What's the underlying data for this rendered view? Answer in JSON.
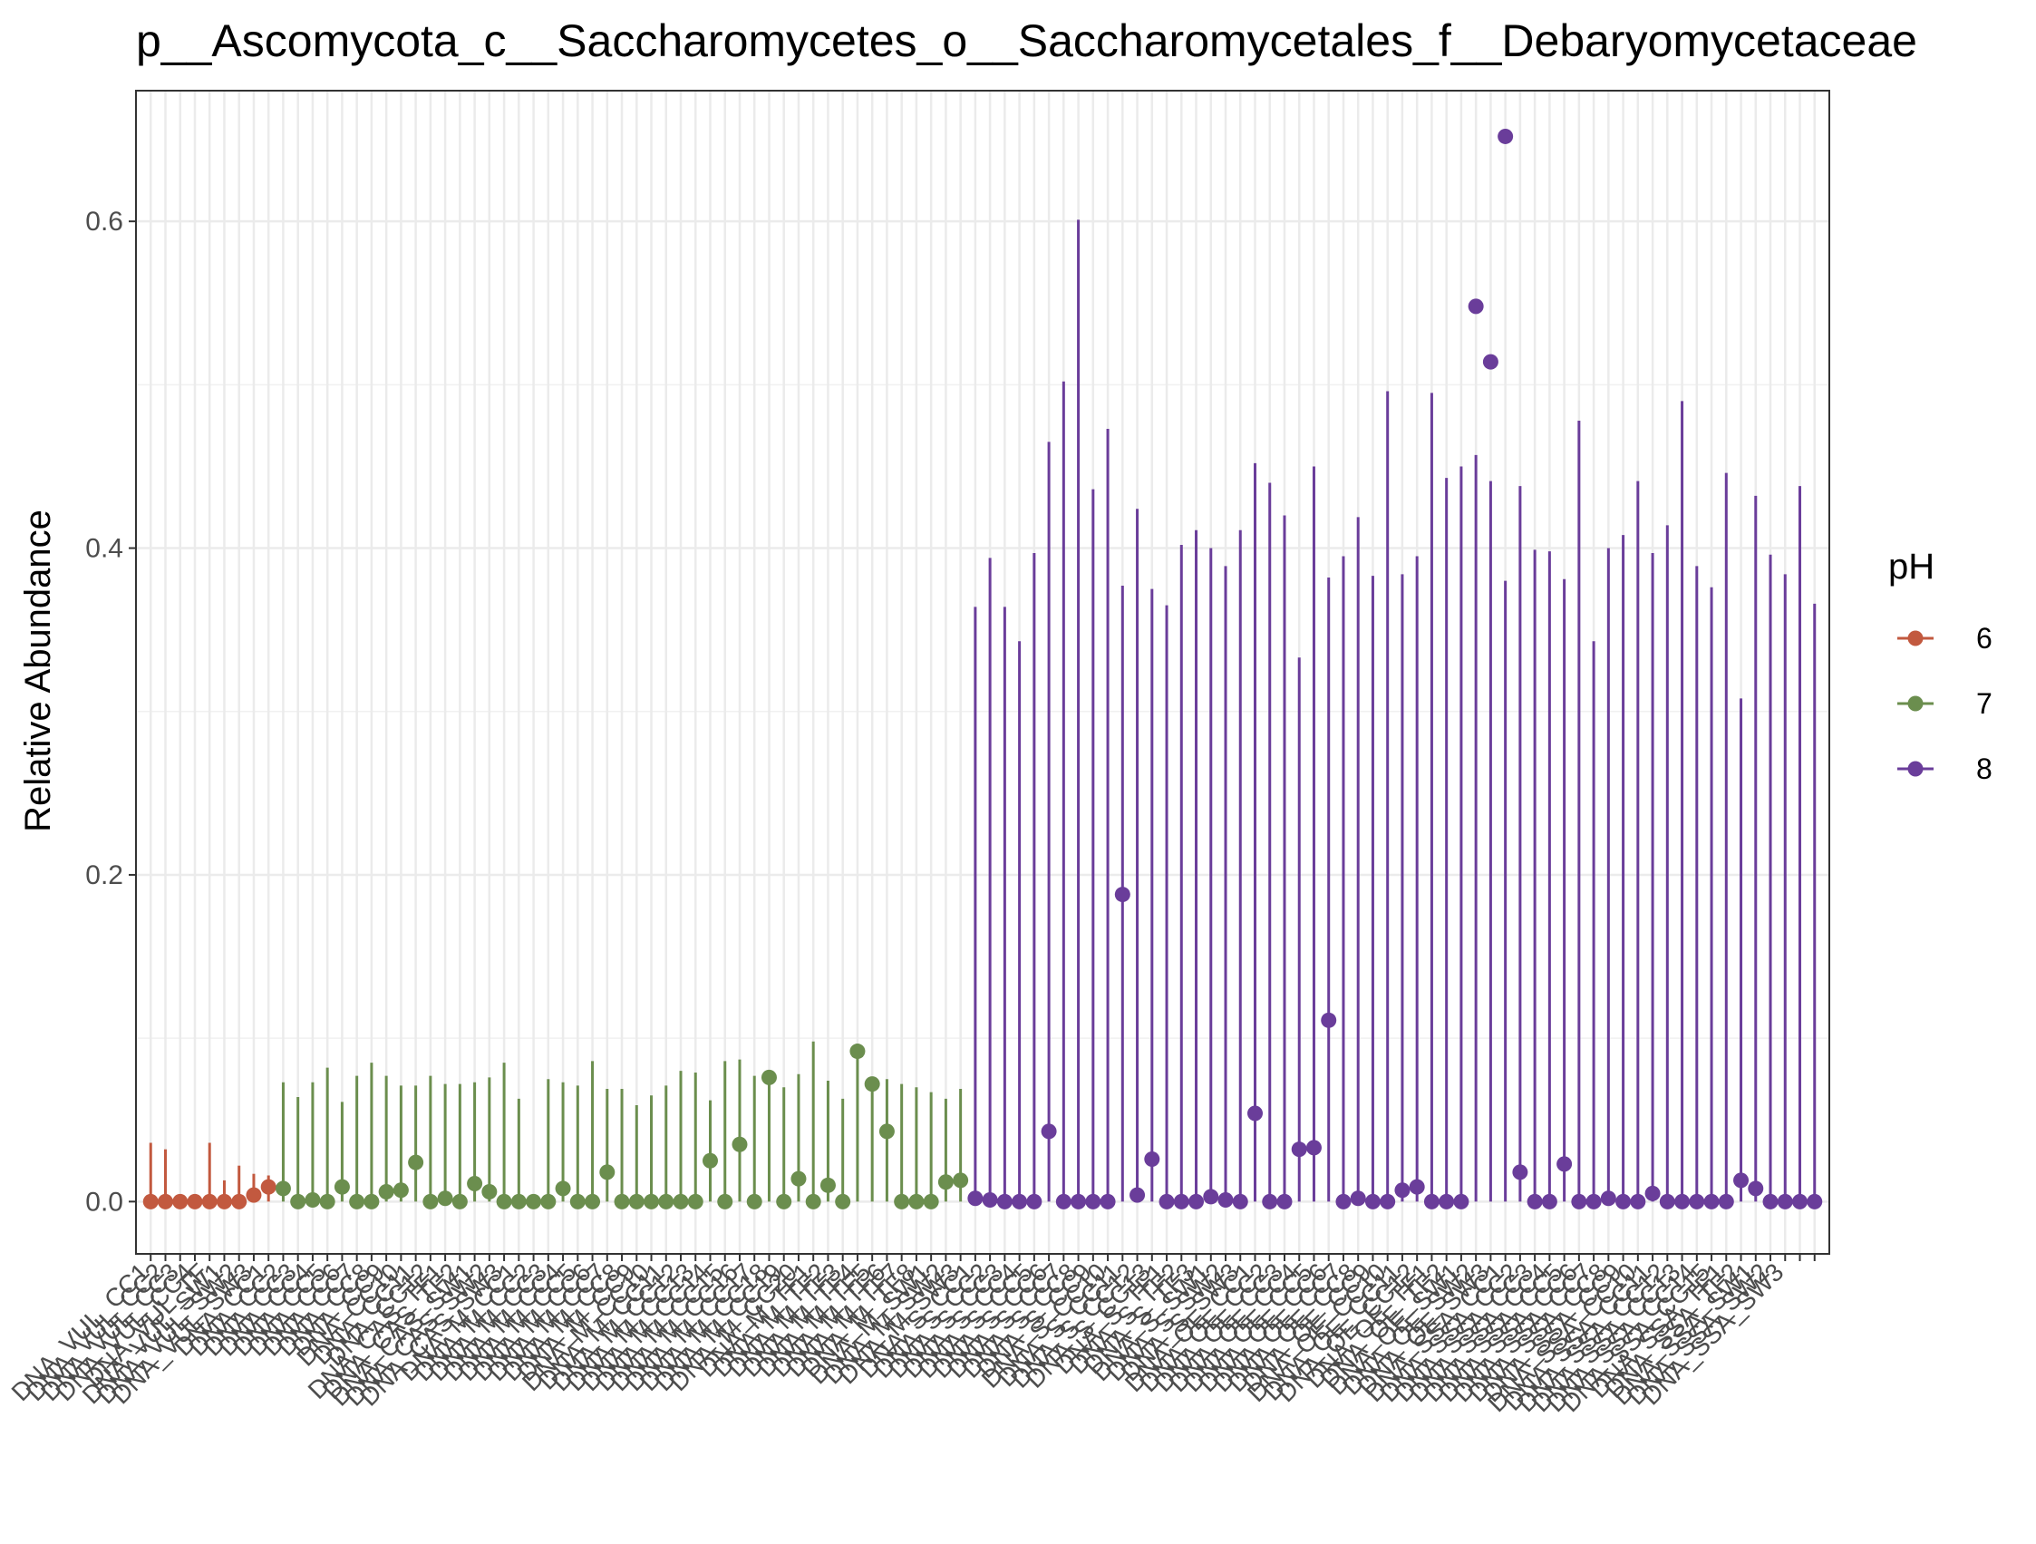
{
  "chart_data": {
    "type": "scatter",
    "title": "p__Ascomycota_c__Saccharomycetes_o__Saccharomycetales_f__Debaryomycetaceae",
    "xlabel": "",
    "ylabel": "Relative Abundance",
    "ylim": [
      -0.032,
      0.68
    ],
    "yticks": [
      0.0,
      0.2,
      0.4,
      0.6
    ],
    "ytick_labels": [
      "0.0",
      "0.2",
      "0.4",
      "0.6"
    ],
    "grid": true,
    "legend": {
      "title": "pH",
      "placement": "right",
      "entries": [
        {
          "label": "6",
          "color": "#C2593F"
        },
        {
          "label": "7",
          "color": "#6B8E4E"
        },
        {
          "label": "8",
          "color": "#6A3D9A"
        }
      ]
    },
    "x_tick_labels": [
      "DNA_VUL_CC1",
      "DNA_VUL_CC2",
      "DNA_VUL_CC3",
      "DNA_VUL_CC4",
      "DNA_VUL_TF",
      "DNA_VUL_SW1",
      "DNA_VUL_SW2",
      "DNA_VUL_SW3",
      "DNA_CC1",
      "DNA_CC2",
      "DNA_CC3",
      "DNA_CC4",
      "DNA_CC5",
      "DNA_CC6",
      "DNA_CC7",
      "DNA_CC8",
      "DNA_CC9",
      "DNA_CC10",
      "DNA_CC11",
      "DNA_CC12",
      "DNA_CAS_TF1",
      "DNA_CAS_TF2",
      "DNA_CAS_SW1",
      "DNA_CAS_SW2",
      "DNA_CAS_SW3",
      "DNA_M_CC1",
      "DNA_M_CC2",
      "DNA_M_CC3",
      "DNA_M_CC4",
      "DNA_M_CC5",
      "DNA_M_CC6",
      "DNA_M_CC7",
      "DNA_M_CC8",
      "DNA_M_CC9",
      "DNA_M_CC10",
      "DNA_M_CC11",
      "DNA_M_CC12",
      "DNA_M_CC13",
      "DNA_M_CC14",
      "DNA_M_CC15",
      "DNA_M_CC16",
      "DNA_M_CC17",
      "DNA_M_CC18",
      "DNA_M_CC19",
      "DNA_M_CC20",
      "DNA_M_TF1",
      "DNA_M_TF2",
      "DNA_M_TF3",
      "DNA_M_TF4",
      "DNA_M_TF5",
      "DNA_M_TF6",
      "DNA_M_TF7",
      "DNA_M_TF8",
      "DNA_M_SW1",
      "DNA_M_SW2",
      "DNA_M_SW3",
      "DNA_S_CC1",
      "DNA_S_CC2",
      "DNA_S_CC3",
      "DNA_S_CC4",
      "DNA_S_CC5",
      "DNA_S_CC6",
      "DNA_S_CC7",
      "DNA_S_CC8",
      "DNA_S_CC9",
      "DNA_S_CC10",
      "DNA_S_CC11",
      "DNA_S_CC12",
      "DNA_S_CC13",
      "DNA_S_TF1",
      "DNA_S_TF2",
      "DNA_S_TF3",
      "DNA_S_SW1",
      "DNA_S_SW2",
      "DNA_S_SW3",
      "DNA_OE_CC1",
      "DNA_OE_CC2",
      "DNA_OE_CC3",
      "DNA_OE_CC4",
      "DNA_OE_CC5",
      "DNA_OE_CC6",
      "DNA_OE_CC7",
      "DNA_OE_CC8",
      "DNA_OE_CC9",
      "DNA_OE_CC10",
      "DNA_OE_CC11",
      "DNA_OE_CC12",
      "DNA_OE_TF1",
      "DNA_OE_TF2",
      "DNA_OE_SW1",
      "DNA_OE_SW2",
      "DNA_OE_SW3",
      "DNA_SSA_CC1",
      "DNA_SSA_CC2",
      "DNA_SSA_CC3",
      "DNA_SSA_CC4",
      "DNA_SSA_CC5",
      "DNA_SSA_CC6",
      "DNA_SSA_CC7",
      "DNA_SSA_CC8",
      "DNA_SSA_CC9",
      "DNA_SSA_CC10",
      "DNA_SSA_CC11",
      "DNA_SSA_CC12",
      "DNA_SSA_CC13",
      "DNA_SSA_CC14",
      "DNA_SSA_CC15",
      "DNA_SSA_TF1",
      "DNA_SSA_TF2",
      "DNA_SSA_SW1",
      "DNA_SSA_SW2",
      "DNA_SSA_SW3"
    ],
    "series": [
      {
        "name": "6",
        "color": "#C2593F",
        "points": [
          {
            "y": 0.0,
            "hi": 0.036
          },
          {
            "y": 0.0,
            "hi": 0.032
          },
          {
            "y": 0.0,
            "hi": 0.0
          },
          {
            "y": 0.0,
            "hi": 0.0
          },
          {
            "y": 0.0,
            "hi": 0.036
          },
          {
            "y": 0.0,
            "hi": 0.013
          },
          {
            "y": 0.0,
            "hi": 0.022
          },
          {
            "y": 0.004,
            "hi": 0.017
          },
          {
            "y": 0.009,
            "hi": 0.016
          }
        ]
      },
      {
        "name": "7",
        "color": "#6B8E4E",
        "points": [
          {
            "y": 0.008,
            "hi": 0.073
          },
          {
            "y": 0.0,
            "hi": 0.064
          },
          {
            "y": 0.001,
            "hi": 0.073
          },
          {
            "y": 0.0,
            "hi": 0.082
          },
          {
            "y": 0.009,
            "hi": 0.061
          },
          {
            "y": 0.0,
            "hi": 0.077
          },
          {
            "y": 0.0,
            "hi": 0.085
          },
          {
            "y": 0.006,
            "hi": 0.077
          },
          {
            "y": 0.007,
            "hi": 0.071
          },
          {
            "y": 0.024,
            "hi": 0.071
          },
          {
            "y": 0.0,
            "hi": 0.077
          },
          {
            "y": 0.002,
            "hi": 0.072
          },
          {
            "y": 0.0,
            "hi": 0.072
          },
          {
            "y": 0.011,
            "hi": 0.073
          },
          {
            "y": 0.006,
            "hi": 0.076
          },
          {
            "y": 0.0,
            "hi": 0.085
          },
          {
            "y": 0.0,
            "hi": 0.063
          },
          {
            "y": 0.0,
            "hi": 0.0
          },
          {
            "y": 0.0,
            "hi": 0.075
          },
          {
            "y": 0.008,
            "hi": 0.073
          },
          {
            "y": 0.0,
            "hi": 0.071
          },
          {
            "y": 0.0,
            "hi": 0.086
          },
          {
            "y": 0.018,
            "hi": 0.069
          },
          {
            "y": 0.0,
            "hi": 0.069
          },
          {
            "y": 0.0,
            "hi": 0.059
          },
          {
            "y": 0.0,
            "hi": 0.065
          },
          {
            "y": 0.0,
            "hi": 0.071
          },
          {
            "y": 0.0,
            "hi": 0.08
          },
          {
            "y": 0.0,
            "hi": 0.079
          },
          {
            "y": 0.025,
            "hi": 0.062
          },
          {
            "y": 0.0,
            "hi": 0.086
          },
          {
            "y": 0.035,
            "hi": 0.087
          },
          {
            "y": 0.0,
            "hi": 0.077
          },
          {
            "y": 0.076,
            "hi": 0.079
          },
          {
            "y": 0.0,
            "hi": 0.07
          },
          {
            "y": 0.014,
            "hi": 0.078
          },
          {
            "y": 0.0,
            "hi": 0.098
          },
          {
            "y": 0.01,
            "hi": 0.074
          },
          {
            "y": 0.0,
            "hi": 0.063
          },
          {
            "y": 0.092,
            "hi": 0.092
          },
          {
            "y": 0.072,
            "hi": 0.076
          },
          {
            "y": 0.043,
            "hi": 0.075
          },
          {
            "y": 0.0,
            "hi": 0.072
          },
          {
            "y": 0.0,
            "hi": 0.07
          },
          {
            "y": 0.0,
            "hi": 0.067
          },
          {
            "y": 0.012,
            "hi": 0.063
          },
          {
            "y": 0.013,
            "hi": 0.069
          }
        ]
      },
      {
        "name": "8",
        "color": "#6A3D9A",
        "points": [
          {
            "y": 0.002,
            "hi": 0.364
          },
          {
            "y": 0.001,
            "hi": 0.394
          },
          {
            "y": 0.0,
            "hi": 0.364
          },
          {
            "y": 0.0,
            "hi": 0.343
          },
          {
            "y": 0.0,
            "hi": 0.397
          },
          {
            "y": 0.043,
            "hi": 0.465
          },
          {
            "y": 0.0,
            "hi": 0.502
          },
          {
            "y": 0.0,
            "hi": 0.601
          },
          {
            "y": 0.0,
            "hi": 0.436
          },
          {
            "y": 0.0,
            "hi": 0.473
          },
          {
            "y": 0.188,
            "hi": 0.377
          },
          {
            "y": 0.004,
            "hi": 0.424
          },
          {
            "y": 0.026,
            "hi": 0.375
          },
          {
            "y": 0.0,
            "hi": 0.365
          },
          {
            "y": 0.0,
            "hi": 0.402
          },
          {
            "y": 0.0,
            "hi": 0.411
          },
          {
            "y": 0.003,
            "hi": 0.4
          },
          {
            "y": 0.001,
            "hi": 0.389
          },
          {
            "y": 0.0,
            "hi": 0.411
          },
          {
            "y": 0.054,
            "hi": 0.452
          },
          {
            "y": 0.0,
            "hi": 0.44
          },
          {
            "y": 0.0,
            "hi": 0.42
          },
          {
            "y": 0.032,
            "hi": 0.333
          },
          {
            "y": 0.033,
            "hi": 0.45
          },
          {
            "y": 0.111,
            "hi": 0.382
          },
          {
            "y": 0.0,
            "hi": 0.395
          },
          {
            "y": 0.002,
            "hi": 0.419
          },
          {
            "y": 0.0,
            "hi": 0.383
          },
          {
            "y": 0.0,
            "hi": 0.496
          },
          {
            "y": 0.007,
            "hi": 0.384
          },
          {
            "y": 0.009,
            "hi": 0.395
          },
          {
            "y": 0.0,
            "hi": 0.495
          },
          {
            "y": 0.0,
            "hi": 0.443
          },
          {
            "y": 0.0,
            "hi": 0.45
          },
          {
            "y": 0.548,
            "hi": 0.457
          },
          {
            "y": 0.514,
            "hi": 0.441
          },
          {
            "y": 0.652,
            "hi": 0.38
          },
          {
            "y": 0.018,
            "hi": 0.438
          },
          {
            "y": 0.0,
            "hi": 0.399
          },
          {
            "y": 0.0,
            "hi": 0.398
          },
          {
            "y": 0.023,
            "hi": 0.381
          },
          {
            "y": 0.0,
            "hi": 0.478
          },
          {
            "y": 0.0,
            "hi": 0.343
          },
          {
            "y": 0.002,
            "hi": 0.4
          },
          {
            "y": 0.0,
            "hi": 0.408
          },
          {
            "y": 0.0,
            "hi": 0.441
          },
          {
            "y": 0.005,
            "hi": 0.397
          },
          {
            "y": 0.0,
            "hi": 0.414
          },
          {
            "y": 0.0,
            "hi": 0.49
          },
          {
            "y": 0.0,
            "hi": 0.389
          },
          {
            "y": 0.0,
            "hi": 0.376
          },
          {
            "y": 0.0,
            "hi": 0.446
          },
          {
            "y": 0.013,
            "hi": 0.308
          },
          {
            "y": 0.008,
            "hi": 0.432
          },
          {
            "y": 0.0,
            "hi": 0.396
          },
          {
            "y": 0.0,
            "hi": 0.384
          },
          {
            "y": 0.0,
            "hi": 0.438
          },
          {
            "y": 0.0,
            "hi": 0.366
          }
        ]
      }
    ]
  }
}
